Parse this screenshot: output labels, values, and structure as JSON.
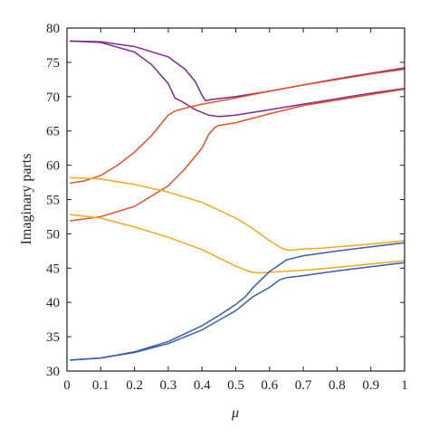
{
  "chart_data": {
    "type": "line",
    "title": "",
    "xlabel": "μ",
    "ylabel": "Imaginary parts",
    "xlim": [
      0,
      1
    ],
    "ylim": [
      30,
      80
    ],
    "xticks": [
      "0",
      "0.1",
      "0.2",
      "0.3",
      "0.4",
      "0.5",
      "0.6",
      "0.7",
      "0.8",
      "0.9",
      "1"
    ],
    "yticks": [
      "30",
      "35",
      "40",
      "45",
      "50",
      "55",
      "60",
      "65",
      "70",
      "75",
      "80"
    ],
    "grid": false,
    "legend": "none",
    "series": [
      {
        "color": "#7b2d8e",
        "x": [
          0.01,
          0.1,
          0.2,
          0.3,
          0.35,
          0.38,
          0.4,
          0.41,
          0.43,
          0.5,
          0.6,
          0.7,
          0.8,
          0.9,
          1.0
        ],
        "y": [
          78.1,
          78.0,
          77.3,
          75.8,
          74.0,
          72.2,
          70.2,
          69.4,
          69.6,
          70.0,
          70.8,
          71.7,
          72.6,
          73.4,
          74.2
        ]
      },
      {
        "color": "#7b2d8e",
        "x": [
          0.01,
          0.1,
          0.2,
          0.25,
          0.3,
          0.32,
          0.34,
          0.38,
          0.42,
          0.45,
          0.5,
          0.6,
          0.7,
          0.8,
          0.9,
          1.0
        ],
        "y": [
          78.1,
          77.9,
          76.5,
          74.7,
          71.9,
          69.8,
          69.3,
          68.1,
          67.3,
          67.1,
          67.3,
          68.1,
          68.9,
          69.7,
          70.5,
          71.2
        ]
      },
      {
        "color": "#e0512a",
        "x": [
          0.01,
          0.05,
          0.1,
          0.15,
          0.2,
          0.25,
          0.28,
          0.3,
          0.32,
          0.34,
          0.4,
          0.5,
          0.6,
          0.7,
          0.8,
          0.9,
          1.0
        ],
        "y": [
          57.4,
          57.7,
          58.5,
          60.0,
          61.9,
          64.3,
          66.1,
          67.3,
          67.9,
          68.2,
          68.9,
          69.8,
          70.8,
          71.7,
          72.5,
          73.3,
          74.0
        ]
      },
      {
        "color": "#e0512a",
        "x": [
          0.01,
          0.1,
          0.2,
          0.3,
          0.35,
          0.4,
          0.42,
          0.44,
          0.45,
          0.5,
          0.6,
          0.7,
          0.8,
          0.9,
          1.0
        ],
        "y": [
          51.9,
          52.5,
          54.0,
          57.0,
          59.5,
          62.5,
          64.5,
          65.6,
          65.8,
          66.2,
          67.5,
          68.7,
          69.5,
          70.3,
          71.1
        ]
      },
      {
        "color": "#f2a81d",
        "x": [
          0.01,
          0.1,
          0.2,
          0.3,
          0.4,
          0.5,
          0.55,
          0.6,
          0.64,
          0.66,
          0.68,
          0.7,
          0.75,
          0.8,
          0.9,
          1.0
        ],
        "y": [
          58.2,
          58.0,
          57.2,
          56.1,
          54.6,
          52.3,
          50.8,
          49.0,
          47.8,
          47.6,
          47.7,
          47.8,
          47.9,
          48.1,
          48.5,
          49.0
        ]
      },
      {
        "color": "#f2a81d",
        "x": [
          0.01,
          0.1,
          0.2,
          0.3,
          0.4,
          0.45,
          0.5,
          0.53,
          0.55,
          0.57,
          0.6,
          0.7,
          0.8,
          0.9,
          1.0
        ],
        "y": [
          52.8,
          52.3,
          51.0,
          49.5,
          47.7,
          46.5,
          45.3,
          44.7,
          44.4,
          44.3,
          44.4,
          44.7,
          45.1,
          45.6,
          46.1
        ]
      },
      {
        "color": "#3a5ca8",
        "x": [
          0.01,
          0.1,
          0.2,
          0.3,
          0.4,
          0.45,
          0.5,
          0.53,
          0.55,
          0.6,
          0.65,
          0.7,
          0.8,
          0.9,
          1.0
        ],
        "y": [
          31.6,
          31.9,
          32.8,
          34.3,
          36.6,
          38.1,
          39.7,
          40.9,
          42.1,
          44.5,
          46.2,
          46.8,
          47.5,
          48.1,
          48.7
        ]
      },
      {
        "color": "#3a5ca8",
        "x": [
          0.01,
          0.1,
          0.2,
          0.3,
          0.4,
          0.5,
          0.55,
          0.6,
          0.63,
          0.65,
          0.7,
          0.8,
          0.9,
          1.0
        ],
        "y": [
          31.6,
          31.9,
          32.7,
          34.0,
          36.0,
          38.8,
          40.8,
          42.2,
          43.3,
          43.6,
          43.9,
          44.6,
          45.2,
          45.8
        ]
      }
    ]
  }
}
